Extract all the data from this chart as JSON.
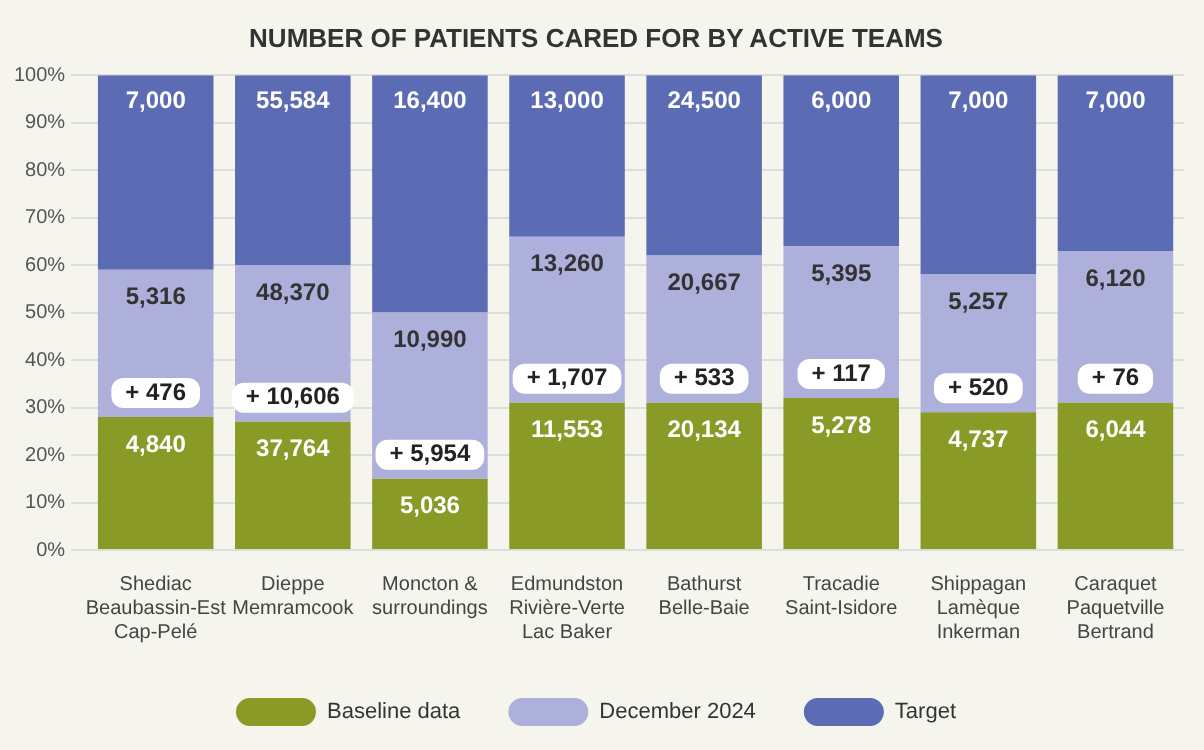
{
  "chart_data": {
    "type": "bar",
    "title": "NUMBER OF PATIENTS CARED FOR BY ACTIVE TEAMS",
    "stacked": true,
    "categories": [
      "Shediac\nBeaubassin-Est\nCap-Pelé",
      "Dieppe\nMemramcook",
      "Moncton &\nsurroundings",
      "Edmundston\nRivière-Verte\nLac Baker",
      "Bathurst\nBelle-Baie",
      "Tracadie\nSaint-Isidore",
      "Shippagan\nLamèque\nInkerman",
      "Caraquet\nPaquetville\nBertrand"
    ],
    "series": [
      {
        "name": "Baseline data",
        "color": "#8a9a26",
        "values": [
          28,
          27,
          15,
          31,
          31,
          32,
          29,
          31
        ]
      },
      {
        "name": "December 2024",
        "color": "#aeb0dc",
        "values": [
          31,
          33,
          35,
          35,
          31,
          32,
          29,
          32
        ]
      },
      {
        "name": "Target",
        "color": "#5b6bb4",
        "values": [
          41,
          40,
          50,
          34,
          38,
          36,
          42,
          37
        ]
      }
    ],
    "annotations": [
      {
        "text": "4,840",
        "x": "Shediac\nBeaubassin-Est\nCap-Pelé",
        "y": 28
      },
      {
        "text": "+ 476",
        "x": "Shediac\nBeaubassin-Est\nCap-Pelé",
        "y": 28
      },
      {
        "text": "5,316",
        "x": "Shediac\nBeaubassin-Est\nCap-Pelé",
        "y": 59
      },
      {
        "text": "7,000",
        "x": "Shediac\nBeaubassin-Est\nCap-Pelé",
        "y": 100
      },
      {
        "text": "37,764",
        "x": "Dieppe\nMemramcook",
        "y": 27
      },
      {
        "text": "+ 10,606",
        "x": "Dieppe\nMemramcook",
        "y": 27
      },
      {
        "text": "48,370",
        "x": "Dieppe\nMemramcook",
        "y": 60
      },
      {
        "text": "55,584",
        "x": "Dieppe\nMemramcook",
        "y": 100
      },
      {
        "text": "5,036",
        "x": "Moncton &\nsurroundings",
        "y": 15
      },
      {
        "text": "+ 5,954",
        "x": "Moncton &\nsurroundings",
        "y": 15
      },
      {
        "text": "10,990",
        "x": "Moncton &\nsurroundings",
        "y": 50
      },
      {
        "text": "16,400",
        "x": "Moncton &\nsurroundings",
        "y": 100
      },
      {
        "text": "11,553",
        "x": "Edmundston\nRivière-Verte\nLac Baker",
        "y": 31
      },
      {
        "text": "+ 1,707",
        "x": "Edmundston\nRivière-Verte\nLac Baker",
        "y": 31
      },
      {
        "text": "13,260",
        "x": "Edmundston\nRivière-Verte\nLac Baker",
        "y": 66
      },
      {
        "text": "13,000",
        "x": "Edmundston\nRivière-Verte\nLac Baker",
        "y": 100
      },
      {
        "text": "20,134",
        "x": "Bathurst\nBelle-Baie",
        "y": 31
      },
      {
        "text": "+ 533",
        "x": "Bathurst\nBelle-Baie",
        "y": 31
      },
      {
        "text": "20,667",
        "x": "Bathurst\nBelle-Baie",
        "y": 62
      },
      {
        "text": "24,500",
        "x": "Bathurst\nBelle-Baie",
        "y": 100
      },
      {
        "text": "5,278",
        "x": "Tracadie\nSaint-Isidore",
        "y": 32
      },
      {
        "text": "+ 117",
        "x": "Tracadie\nSaint-Isidore",
        "y": 32
      },
      {
        "text": "5,395",
        "x": "Tracadie\nSaint-Isidore",
        "y": 64
      },
      {
        "text": "6,000",
        "x": "Tracadie\nSaint-Isidore",
        "y": 100
      },
      {
        "text": "4,737",
        "x": "Shippagan\nLamèque\nInkerman",
        "y": 29
      },
      {
        "text": "+ 520",
        "x": "Shippagan\nLamèque\nInkerman",
        "y": 29
      },
      {
        "text": "5,257",
        "x": "Shippagan\nLamèque\nInkerman",
        "y": 58
      },
      {
        "text": "7,000",
        "x": "Shippagan\nLamèque\nInkerman",
        "y": 100
      },
      {
        "text": "6,044",
        "x": "Caraquet\nPaquetville\nBertrand",
        "y": 31
      },
      {
        "text": "+ 76",
        "x": "Caraquet\nPaquetville\nBertrand",
        "y": 31
      },
      {
        "text": "6,120",
        "x": "Caraquet\nPaquetville\nBertrand",
        "y": 63
      },
      {
        "text": "7,000",
        "x": "Caraquet\nPaquetville\nBertrand",
        "y": 100
      }
    ],
    "ylim": [
      0,
      100
    ],
    "yticks": [
      {
        "value": 0,
        "label": "0%"
      },
      {
        "value": 10,
        "label": "10%"
      },
      {
        "value": 20,
        "label": "20%"
      },
      {
        "value": 30,
        "label": "30%"
      },
      {
        "value": 40,
        "label": "40%"
      },
      {
        "value": 50,
        "label": "50%"
      },
      {
        "value": 60,
        "label": "60%"
      },
      {
        "value": 70,
        "label": "70%"
      },
      {
        "value": 80,
        "label": "80%"
      },
      {
        "value": 90,
        "label": "90%"
      },
      {
        "value": 100,
        "label": "100%"
      }
    ],
    "grid": "y",
    "legend": "bottom"
  }
}
